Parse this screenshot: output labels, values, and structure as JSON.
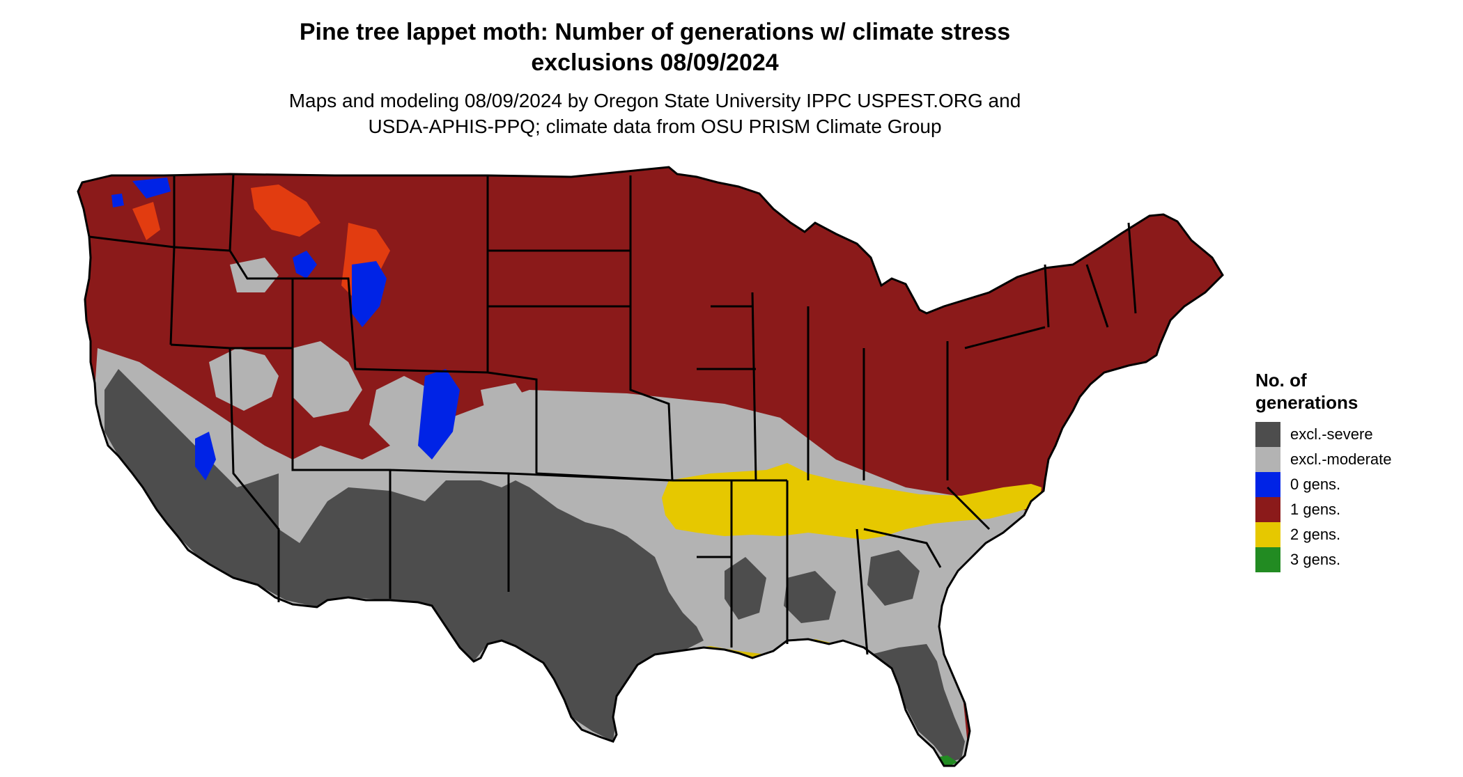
{
  "title_line1": "Pine tree lappet moth: Number of generations w/ climate stress",
  "title_line2": "exclusions 08/09/2024",
  "subtitle_line1": "Maps and modeling 08/09/2024 by Oregon State University IPPC USPEST.ORG and",
  "subtitle_line2": "USDA-APHIS-PPQ; climate data from OSU PRISM Climate Group",
  "legend": {
    "title_line1": "No. of",
    "title_line2": "generations",
    "items": [
      {
        "label": "excl.-severe",
        "color": "#4d4d4d"
      },
      {
        "label": "excl.-moderate",
        "color": "#b3b3b3"
      },
      {
        "label": "0 gens.",
        "color": "#0023e6"
      },
      {
        "label": "1 gens.",
        "color": "#8b1a1a"
      },
      {
        "label": "2 gens.",
        "color": "#e6c800"
      },
      {
        "label": "3 gens.",
        "color": "#228b22"
      }
    ]
  }
}
